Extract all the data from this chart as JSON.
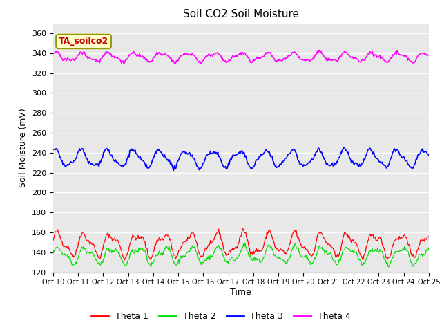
{
  "title": "Soil CO2 Soil Moisture",
  "xlabel": "Time",
  "ylabel": "Soil Moisture (mV)",
  "ylim": [
    120,
    370
  ],
  "yticks": [
    120,
    140,
    160,
    180,
    200,
    220,
    240,
    260,
    280,
    300,
    320,
    340,
    360
  ],
  "x_labels": [
    "Oct 10",
    "Oct 11",
    "Oct 12",
    "Oct 13",
    "Oct 14",
    "Oct 15",
    "Oct 16",
    "Oct 17",
    "Oct 18",
    "Oct 19",
    "Oct 20",
    "Oct 21",
    "Oct 22",
    "Oct 23",
    "Oct 24",
    "Oct 25"
  ],
  "annotation_text": "TA_soilco2",
  "colors": {
    "theta1": "#ff0000",
    "theta2": "#00dd00",
    "theta3": "#0000ff",
    "theta4": "#ff00ff"
  },
  "legend_labels": [
    "Theta 1",
    "Theta 2",
    "Theta 3",
    "Theta 4"
  ],
  "background_color": "#e8e8e8",
  "fig_background": "#ffffff",
  "num_points": 500
}
